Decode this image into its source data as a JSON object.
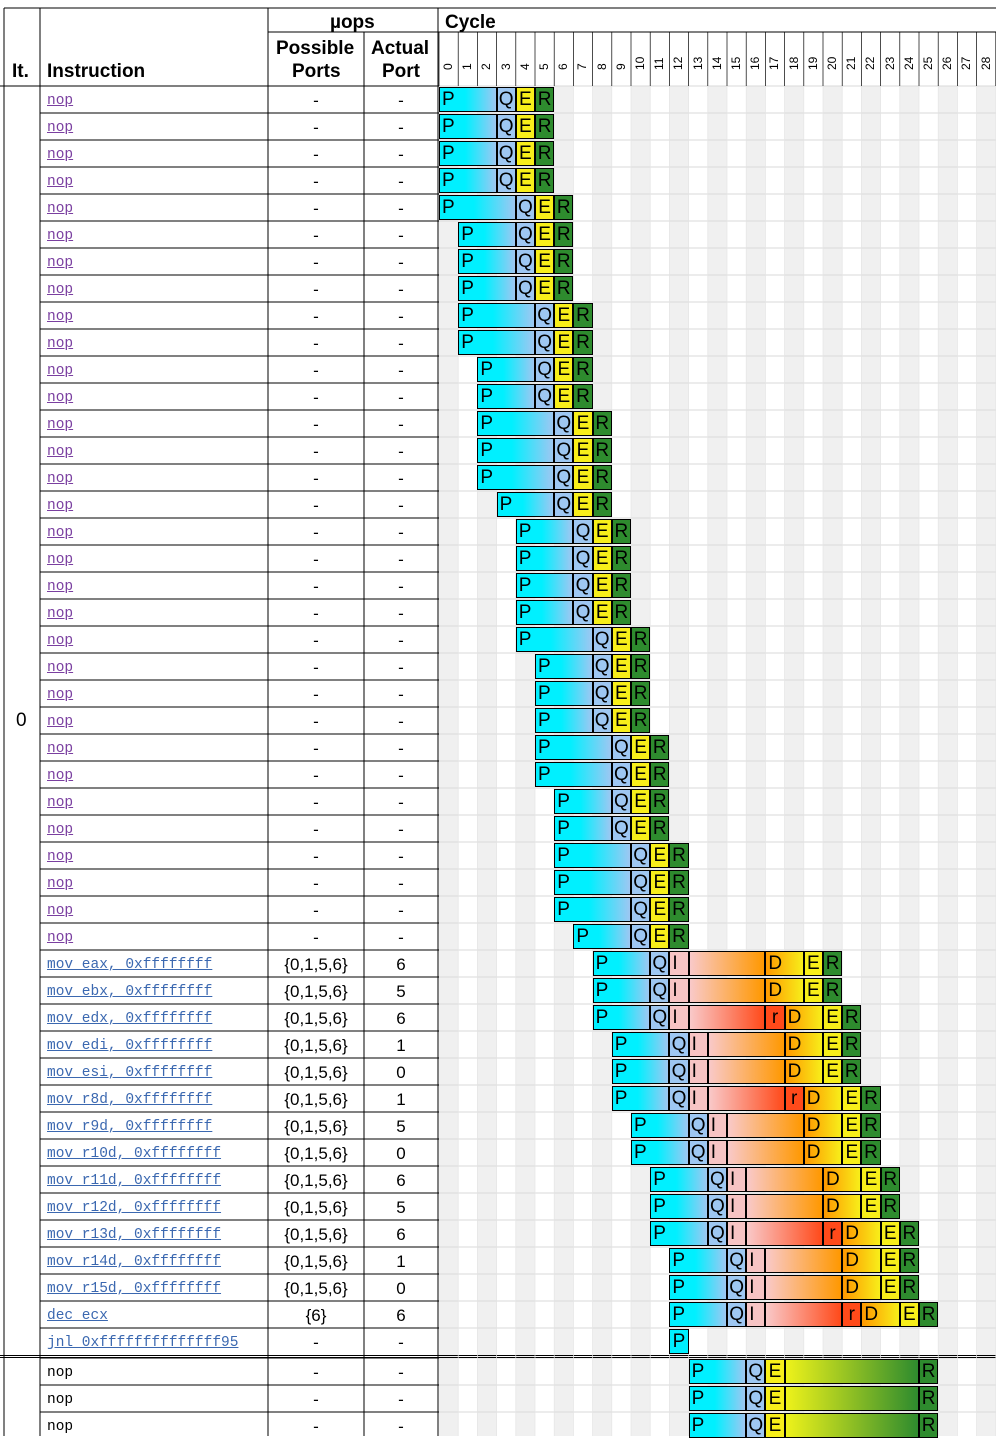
{
  "header": {
    "col_it": "It.",
    "col_instruction": "Instruction",
    "uops": "µops",
    "possible": "Possible",
    "ports": "Ports",
    "actual": "Actual",
    "port": "Port",
    "cycle": "Cycle"
  },
  "iteration_label": "0",
  "cycle_numbers": [
    "0",
    "1",
    "2",
    "3",
    "4",
    "5",
    "6",
    "7",
    "8",
    "9",
    "10",
    "11",
    "12",
    "13",
    "14",
    "15",
    "16",
    "17",
    "18",
    "19",
    "20",
    "21",
    "22",
    "23",
    "24",
    "25",
    "26",
    "27",
    "28"
  ],
  "colors": {
    "predecode": "#00f0ff",
    "queue": "#9ec7f2",
    "execute": "#f7ee1a",
    "retire": "#2e8b2e",
    "issue": "#f7c4c4",
    "dispatch": "#ff9800",
    "ready": "#ff4a1a",
    "link": "#3b68b0",
    "visited": "#7a3fa0"
  },
  "stages": {
    "P": "P",
    "Q": "Q",
    "I": "I",
    "D": "D",
    "E": "E",
    "R": "R",
    "r": "r"
  },
  "rows": [
    {
      "instr": "nop",
      "poss": "-",
      "act": "-",
      "style": "v",
      "P": 0,
      "Q": 3,
      "E": 4,
      "R": 5
    },
    {
      "instr": "nop",
      "poss": "-",
      "act": "-",
      "style": "v",
      "P": 0,
      "Q": 3,
      "E": 4,
      "R": 5
    },
    {
      "instr": "nop",
      "poss": "-",
      "act": "-",
      "style": "v",
      "P": 0,
      "Q": 3,
      "E": 4,
      "R": 5
    },
    {
      "instr": "nop",
      "poss": "-",
      "act": "-",
      "style": "v",
      "P": 0,
      "Q": 3,
      "E": 4,
      "R": 5
    },
    {
      "instr": "nop",
      "poss": "-",
      "act": "-",
      "style": "v",
      "P": 0,
      "Q": 4,
      "E": 5,
      "R": 6
    },
    {
      "instr": "nop",
      "poss": "-",
      "act": "-",
      "style": "v",
      "P": 1,
      "Q": 4,
      "E": 5,
      "R": 6
    },
    {
      "instr": "nop",
      "poss": "-",
      "act": "-",
      "style": "v",
      "P": 1,
      "Q": 4,
      "E": 5,
      "R": 6
    },
    {
      "instr": "nop",
      "poss": "-",
      "act": "-",
      "style": "v",
      "P": 1,
      "Q": 4,
      "E": 5,
      "R": 6
    },
    {
      "instr": "nop",
      "poss": "-",
      "act": "-",
      "style": "v",
      "P": 1,
      "Q": 5,
      "E": 6,
      "R": 7
    },
    {
      "instr": "nop",
      "poss": "-",
      "act": "-",
      "style": "v",
      "P": 1,
      "Q": 5,
      "E": 6,
      "R": 7
    },
    {
      "instr": "nop",
      "poss": "-",
      "act": "-",
      "style": "v",
      "P": 2,
      "Q": 5,
      "E": 6,
      "R": 7
    },
    {
      "instr": "nop",
      "poss": "-",
      "act": "-",
      "style": "v",
      "P": 2,
      "Q": 5,
      "E": 6,
      "R": 7
    },
    {
      "instr": "nop",
      "poss": "-",
      "act": "-",
      "style": "v",
      "P": 2,
      "Q": 6,
      "E": 7,
      "R": 8
    },
    {
      "instr": "nop",
      "poss": "-",
      "act": "-",
      "style": "v",
      "P": 2,
      "Q": 6,
      "E": 7,
      "R": 8
    },
    {
      "instr": "nop",
      "poss": "-",
      "act": "-",
      "style": "v",
      "P": 2,
      "Q": 6,
      "E": 7,
      "R": 8
    },
    {
      "instr": "nop",
      "poss": "-",
      "act": "-",
      "style": "v",
      "P": 3,
      "Q": 6,
      "E": 7,
      "R": 8
    },
    {
      "instr": "nop",
      "poss": "-",
      "act": "-",
      "style": "v",
      "P": 4,
      "Q": 7,
      "E": 8,
      "R": 9
    },
    {
      "instr": "nop",
      "poss": "-",
      "act": "-",
      "style": "v",
      "P": 4,
      "Q": 7,
      "E": 8,
      "R": 9
    },
    {
      "instr": "nop",
      "poss": "-",
      "act": "-",
      "style": "v",
      "P": 4,
      "Q": 7,
      "E": 8,
      "R": 9
    },
    {
      "instr": "nop",
      "poss": "-",
      "act": "-",
      "style": "v",
      "P": 4,
      "Q": 7,
      "E": 8,
      "R": 9
    },
    {
      "instr": "nop",
      "poss": "-",
      "act": "-",
      "style": "v",
      "P": 4,
      "Q": 8,
      "E": 9,
      "R": 10
    },
    {
      "instr": "nop",
      "poss": "-",
      "act": "-",
      "style": "v",
      "P": 5,
      "Q": 8,
      "E": 9,
      "R": 10
    },
    {
      "instr": "nop",
      "poss": "-",
      "act": "-",
      "style": "v",
      "P": 5,
      "Q": 8,
      "E": 9,
      "R": 10
    },
    {
      "instr": "nop",
      "poss": "-",
      "act": "-",
      "style": "v",
      "P": 5,
      "Q": 8,
      "E": 9,
      "R": 10
    },
    {
      "instr": "nop",
      "poss": "-",
      "act": "-",
      "style": "v",
      "P": 5,
      "Q": 9,
      "E": 10,
      "R": 11
    },
    {
      "instr": "nop",
      "poss": "-",
      "act": "-",
      "style": "v",
      "P": 5,
      "Q": 9,
      "E": 10,
      "R": 11
    },
    {
      "instr": "nop",
      "poss": "-",
      "act": "-",
      "style": "v",
      "P": 6,
      "Q": 9,
      "E": 10,
      "R": 11
    },
    {
      "instr": "nop",
      "poss": "-",
      "act": "-",
      "style": "v",
      "P": 6,
      "Q": 9,
      "E": 10,
      "R": 11
    },
    {
      "instr": "nop",
      "poss": "-",
      "act": "-",
      "style": "v",
      "P": 6,
      "Q": 10,
      "E": 11,
      "R": 12
    },
    {
      "instr": "nop",
      "poss": "-",
      "act": "-",
      "style": "v",
      "P": 6,
      "Q": 10,
      "E": 11,
      "R": 12
    },
    {
      "instr": "nop",
      "poss": "-",
      "act": "-",
      "style": "v",
      "P": 6,
      "Q": 10,
      "E": 11,
      "R": 12
    },
    {
      "instr": "nop",
      "poss": "-",
      "act": "-",
      "style": "v",
      "P": 7,
      "Q": 10,
      "E": 11,
      "R": 12
    },
    {
      "instr": "mov eax, 0xffffffff",
      "poss": "{0,1,5,6}",
      "act": "6",
      "style": "l",
      "P": 8,
      "Q": 11,
      "I": 12,
      "D": 17,
      "E": 19,
      "R": 20
    },
    {
      "instr": "mov ebx, 0xffffffff",
      "poss": "{0,1,5,6}",
      "act": "5",
      "style": "l",
      "P": 8,
      "Q": 11,
      "I": 12,
      "D": 17,
      "E": 19,
      "R": 20
    },
    {
      "instr": "mov edx, 0xffffffff",
      "poss": "{0,1,5,6}",
      "act": "6",
      "style": "l",
      "P": 8,
      "Q": 11,
      "I": 12,
      "r": 17,
      "D": 18,
      "E": 20,
      "R": 21
    },
    {
      "instr": "mov edi, 0xffffffff",
      "poss": "{0,1,5,6}",
      "act": "1",
      "style": "l",
      "P": 9,
      "Q": 12,
      "I": 13,
      "D": 18,
      "E": 20,
      "R": 21
    },
    {
      "instr": "mov esi, 0xffffffff",
      "poss": "{0,1,5,6}",
      "act": "0",
      "style": "l",
      "P": 9,
      "Q": 12,
      "I": 13,
      "D": 18,
      "E": 20,
      "R": 21
    },
    {
      "instr": "mov r8d, 0xffffffff",
      "poss": "{0,1,5,6}",
      "act": "1",
      "style": "l",
      "P": 9,
      "Q": 12,
      "I": 13,
      "r": 18,
      "D": 19,
      "E": 21,
      "R": 22
    },
    {
      "instr": "mov r9d, 0xffffffff",
      "poss": "{0,1,5,6}",
      "act": "5",
      "style": "l",
      "P": 10,
      "Q": 13,
      "I": 14,
      "D": 19,
      "E": 21,
      "R": 22
    },
    {
      "instr": "mov r10d, 0xffffffff",
      "poss": "{0,1,5,6}",
      "act": "0",
      "style": "l",
      "P": 10,
      "Q": 13,
      "I": 14,
      "D": 19,
      "E": 21,
      "R": 22
    },
    {
      "instr": "mov r11d, 0xffffffff",
      "poss": "{0,1,5,6}",
      "act": "6",
      "style": "l",
      "P": 11,
      "Q": 14,
      "I": 15,
      "D": 20,
      "E": 22,
      "R": 23
    },
    {
      "instr": "mov r12d, 0xffffffff",
      "poss": "{0,1,5,6}",
      "act": "5",
      "style": "l",
      "P": 11,
      "Q": 14,
      "I": 15,
      "D": 20,
      "E": 22,
      "R": 23
    },
    {
      "instr": "mov r13d, 0xffffffff",
      "poss": "{0,1,5,6}",
      "act": "6",
      "style": "l",
      "P": 11,
      "Q": 14,
      "I": 15,
      "r": 20,
      "D": 21,
      "E": 23,
      "R": 24
    },
    {
      "instr": "mov r14d, 0xffffffff",
      "poss": "{0,1,5,6}",
      "act": "1",
      "style": "l",
      "P": 12,
      "Q": 15,
      "I": 16,
      "D": 21,
      "E": 23,
      "R": 24
    },
    {
      "instr": "mov r15d, 0xffffffff",
      "poss": "{0,1,5,6}",
      "act": "0",
      "style": "l",
      "P": 12,
      "Q": 15,
      "I": 16,
      "D": 21,
      "E": 23,
      "R": 24
    },
    {
      "instr": "dec ecx",
      "poss": "{6}",
      "act": "6",
      "style": "l",
      "P": 12,
      "Q": 15,
      "I": 16,
      "r": 21,
      "D": 22,
      "E": 24,
      "R": 25
    },
    {
      "instr": "jnl 0xffffffffffffff95",
      "poss": "-",
      "act": "-",
      "style": "l",
      "P": 12
    },
    {
      "instr": "nop",
      "poss": "-",
      "act": "-",
      "style": "p",
      "P": 13,
      "Q": 16,
      "E": 17,
      "RL": 25
    },
    {
      "instr": "nop",
      "poss": "-",
      "act": "-",
      "style": "p",
      "P": 13,
      "Q": 16,
      "E": 17,
      "RL": 25
    },
    {
      "instr": "nop",
      "poss": "-",
      "act": "-",
      "style": "p",
      "P": 13,
      "Q": 16,
      "E": 17,
      "RL": 25
    }
  ]
}
